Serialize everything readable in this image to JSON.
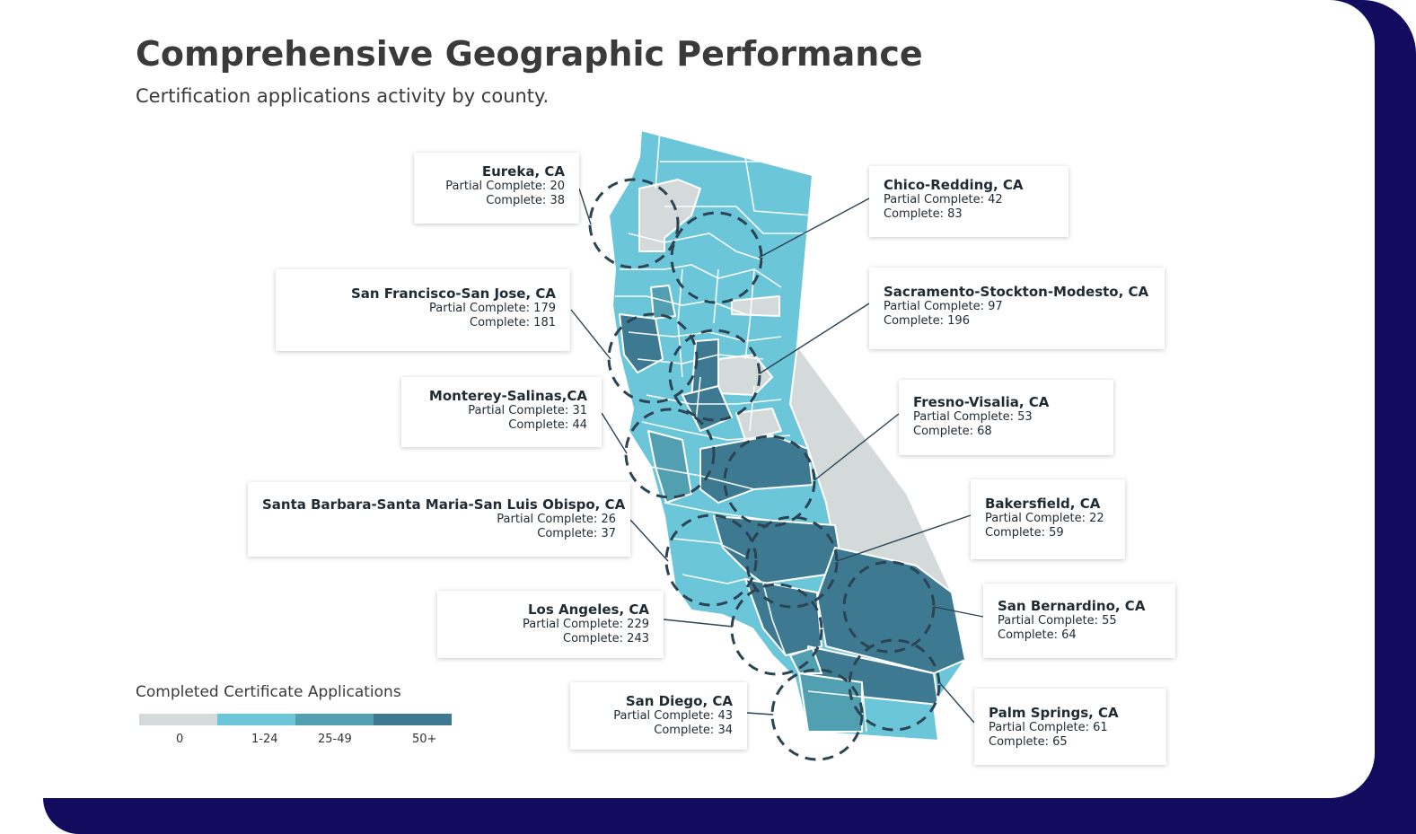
{
  "header": {
    "title": "Comprehensive Geographic Performance",
    "subtitle": "Certification applications activity by county."
  },
  "colors": {
    "none": "#d4d9d9",
    "low": "#6cc6d9",
    "mid": "#519fb1",
    "high": "#3d7a91",
    "frame": "#130c5e"
  },
  "legend": {
    "title": "Completed Certificate Applications",
    "bins": [
      {
        "label": "0",
        "color": "#d4d9d9"
      },
      {
        "label": "1-24",
        "color": "#6cc6d9"
      },
      {
        "label": "25-49",
        "color": "#519fb1"
      },
      {
        "label": "50+",
        "color": "#3d7a91"
      }
    ]
  },
  "regions": [
    {
      "name": "Eureka, CA",
      "partial_label": "Partial Complete: 20",
      "complete_label": "Complete: 38"
    },
    {
      "name": "Chico-Redding, CA",
      "partial_label": "Partial Complete: 42",
      "complete_label": "Complete: 83"
    },
    {
      "name": "San Francisco-San Jose, CA",
      "partial_label": "Partial Complete: 179",
      "complete_label": "Complete: 181"
    },
    {
      "name": "Sacramento-Stockton-Modesto, CA",
      "partial_label": "Partial Complete: 97",
      "complete_label": "Complete: 196"
    },
    {
      "name": "Monterey-Salinas,CA",
      "partial_label": "Partial Complete: 31",
      "complete_label": "Complete: 44"
    },
    {
      "name": "Fresno-Visalia, CA",
      "partial_label": "Partial Complete: 53",
      "complete_label": "Complete: 68"
    },
    {
      "name": "Santa Barbara-Santa Maria-San Luis Obispo, CA",
      "partial_label": "Partial Complete: 26",
      "complete_label": "Complete: 37"
    },
    {
      "name": "Bakersfield, CA",
      "partial_label": "Partial Complete: 22",
      "complete_label": "Complete: 59"
    },
    {
      "name": "Los Angeles, CA",
      "partial_label": "Partial Complete: 229",
      "complete_label": "Complete: 243"
    },
    {
      "name": "San Bernardino, CA",
      "partial_label": "Partial Complete: 55",
      "complete_label": "Complete: 64"
    },
    {
      "name": "San Diego, CA",
      "partial_label": "Partial Complete: 43",
      "complete_label": "Complete: 34"
    },
    {
      "name": "Palm Springs, CA",
      "partial_label": "Partial Complete: 61",
      "complete_label": "Complete: 65"
    }
  ]
}
